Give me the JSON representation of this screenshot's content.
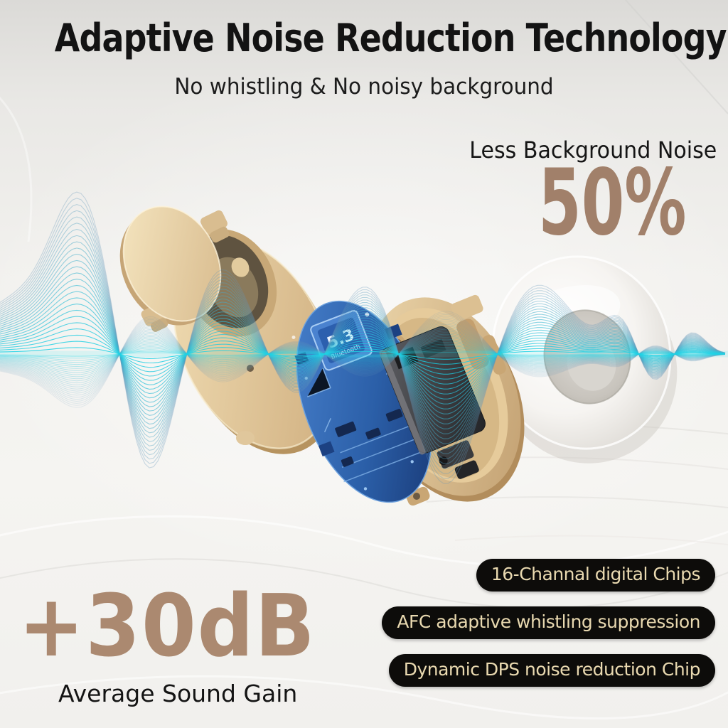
{
  "header": {
    "title": "Adaptive Noise Reduction Technology",
    "subtitle": "No whistling & No noisy background"
  },
  "noise_stat": {
    "label": "Less Background Noise",
    "value": "50%"
  },
  "gain_stat": {
    "value": "+30dB",
    "label": "Average Sound Gain"
  },
  "feature_badges": [
    {
      "label": "16-Channal digital Chips"
    },
    {
      "label": "AFC adaptive whistling suppression"
    },
    {
      "label": "Dynamic DPS noise reduction Chip"
    }
  ],
  "product": {
    "chip_text_primary": "5.3",
    "chip_text_secondary": "Bluetooth"
  },
  "colors": {
    "accent_tan": "#a1806a",
    "badge_bg": "#0d0c0a",
    "badge_text": "#e9d9b0",
    "wave_cyan": "#1ad0e4",
    "wave_steel_blue": "#6496b9",
    "shell_beige": "#e9d6ac",
    "circuit_blue": "#2b5fa8",
    "dome_white": "#f6f4f1",
    "text_dark": "#141414"
  }
}
